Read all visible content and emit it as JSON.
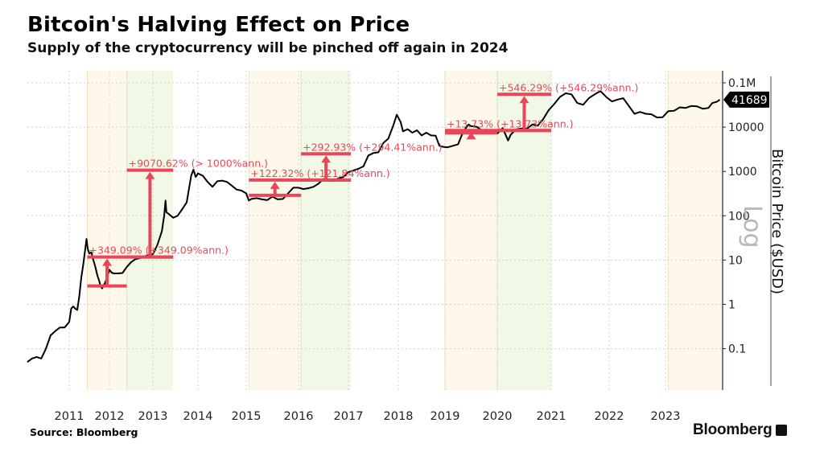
{
  "header": {
    "title": "Bitcoin's Halving Effect on Price",
    "subtitle": "Supply of the cryptocurrency will be pinched off again in 2024"
  },
  "footer": {
    "source": "Source: Bloomberg",
    "brand": "Bloomberg"
  },
  "colors": {
    "line": "#000000",
    "annotation": "#e8475a",
    "pre_halving_band": "#fdf8ea",
    "post_halving_band": "#f1f8e6",
    "grid": "#d0d0d0",
    "last_price_badge": "#000000"
  },
  "chart_data": {
    "type": "line",
    "title": "Bitcoin's Halving Effect on Price",
    "subtitle": "Supply of the cryptocurrency will be pinched off again in 2024",
    "xlabel": "",
    "ylabel": "Bitcoin Price ($USD)",
    "yscale": "log",
    "yscale_label": "Log",
    "ylim": [
      0.02,
      150000
    ],
    "y_ticks": [
      {
        "value": 100000,
        "label": "0.1M"
      },
      {
        "value": 10000,
        "label": "10000"
      },
      {
        "value": 1000,
        "label": "1000"
      },
      {
        "value": 100,
        "label": "100"
      },
      {
        "value": 10,
        "label": "10"
      },
      {
        "value": 1,
        "label": "1"
      },
      {
        "value": 0.1,
        "label": "0.1"
      }
    ],
    "x_ticks": [
      "2011",
      "2012",
      "2013",
      "2014",
      "2015",
      "2016",
      "2017",
      "2018",
      "2019",
      "2020",
      "2021",
      "2022",
      "2023"
    ],
    "xlim": [
      2010.55,
      2024.0
    ],
    "grid": true,
    "last_price": {
      "label": "41689",
      "value": 41689
    },
    "bands": [
      {
        "kind": "pre-halving",
        "start": 2011.45,
        "end": 2012.4
      },
      {
        "kind": "post-halving",
        "start": 2012.4,
        "end": 2013.45
      },
      {
        "kind": "pre-halving",
        "start": 2015.05,
        "end": 2016.05
      },
      {
        "kind": "post-halving",
        "start": 2016.05,
        "end": 2017.05
      },
      {
        "kind": "pre-halving",
        "start": 2019.0,
        "end": 2020.0
      },
      {
        "kind": "post-halving",
        "start": 2020.0,
        "end": 2021.0
      },
      {
        "kind": "pre-halving",
        "start": 2023.05,
        "end": 2024.0
      }
    ],
    "series": [
      {
        "name": "Bitcoin Price",
        "points": [
          [
            2010.55,
            0.05
          ],
          [
            2010.6,
            0.06
          ],
          [
            2010.65,
            0.065
          ],
          [
            2010.7,
            0.06
          ],
          [
            2010.75,
            0.1
          ],
          [
            2010.8,
            0.2
          ],
          [
            2010.85,
            0.25
          ],
          [
            2010.9,
            0.3
          ],
          [
            2010.95,
            0.3
          ],
          [
            2011.0,
            0.4
          ],
          [
            2011.05,
            0.8
          ],
          [
            2011.1,
            0.9
          ],
          [
            2011.15,
            0.8
          ],
          [
            2011.2,
            0.75
          ],
          [
            2011.25,
            1.5
          ],
          [
            2011.3,
            4
          ],
          [
            2011.35,
            8
          ],
          [
            2011.4,
            18
          ],
          [
            2011.43,
            30
          ],
          [
            2011.46,
            18
          ],
          [
            2011.5,
            14
          ],
          [
            2011.55,
            15
          ],
          [
            2011.6,
            10
          ],
          [
            2011.65,
            7
          ],
          [
            2011.7,
            4.5
          ],
          [
            2011.75,
            3.3
          ],
          [
            2011.78,
            2.5
          ],
          [
            2011.82,
            2.3
          ],
          [
            2011.9,
            3.2
          ],
          [
            2012.0,
            6
          ],
          [
            2012.05,
            5.2
          ],
          [
            2012.1,
            5
          ],
          [
            2012.2,
            5
          ],
          [
            2012.3,
            5.1
          ],
          [
            2012.4,
            7
          ],
          [
            2012.5,
            9
          ],
          [
            2012.6,
            10.5
          ],
          [
            2012.7,
            11
          ],
          [
            2012.8,
            12
          ],
          [
            2012.9,
            13
          ],
          [
            2013.0,
            13.5
          ],
          [
            2013.1,
            22
          ],
          [
            2013.2,
            45
          ],
          [
            2013.25,
            100
          ],
          [
            2013.28,
            220
          ],
          [
            2013.3,
            120
          ],
          [
            2013.35,
            110
          ],
          [
            2013.45,
            90
          ],
          [
            2013.5,
            95
          ],
          [
            2013.55,
            100
          ],
          [
            2013.65,
            140
          ],
          [
            2013.75,
            200
          ],
          [
            2013.85,
            800
          ],
          [
            2013.9,
            1100
          ],
          [
            2013.95,
            750
          ],
          [
            2014.0,
            900
          ],
          [
            2014.1,
            800
          ],
          [
            2014.2,
            580
          ],
          [
            2014.3,
            450
          ],
          [
            2014.4,
            600
          ],
          [
            2014.5,
            620
          ],
          [
            2014.6,
            580
          ],
          [
            2014.7,
            480
          ],
          [
            2014.8,
            390
          ],
          [
            2014.9,
            370
          ],
          [
            2015.0,
            320
          ],
          [
            2015.05,
            220
          ],
          [
            2015.1,
            240
          ],
          [
            2015.2,
            250
          ],
          [
            2015.3,
            235
          ],
          [
            2015.4,
            225
          ],
          [
            2015.5,
            270
          ],
          [
            2015.6,
            235
          ],
          [
            2015.7,
            240
          ],
          [
            2015.8,
            320
          ],
          [
            2015.9,
            430
          ],
          [
            2016.0,
            430
          ],
          [
            2016.1,
            400
          ],
          [
            2016.2,
            420
          ],
          [
            2016.3,
            450
          ],
          [
            2016.4,
            530
          ],
          [
            2016.5,
            680
          ],
          [
            2016.6,
            620
          ],
          [
            2016.7,
            610
          ],
          [
            2016.8,
            700
          ],
          [
            2016.9,
            750
          ],
          [
            2017.0,
            970
          ],
          [
            2017.1,
            1050
          ],
          [
            2017.2,
            1150
          ],
          [
            2017.3,
            1300
          ],
          [
            2017.4,
            2300
          ],
          [
            2017.5,
            2600
          ],
          [
            2017.6,
            2700
          ],
          [
            2017.7,
            4400
          ],
          [
            2017.8,
            5500
          ],
          [
            2017.9,
            11000
          ],
          [
            2017.97,
            19000
          ],
          [
            2018.05,
            13000
          ],
          [
            2018.1,
            8000
          ],
          [
            2018.2,
            9000
          ],
          [
            2018.3,
            7500
          ],
          [
            2018.4,
            8500
          ],
          [
            2018.5,
            6500
          ],
          [
            2018.6,
            7500
          ],
          [
            2018.7,
            6500
          ],
          [
            2018.8,
            6400
          ],
          [
            2018.88,
            3800
          ],
          [
            2018.95,
            3600
          ],
          [
            2019.05,
            3500
          ],
          [
            2019.15,
            3800
          ],
          [
            2019.25,
            4100
          ],
          [
            2019.35,
            8000
          ],
          [
            2019.45,
            11500
          ],
          [
            2019.5,
            10500
          ],
          [
            2019.6,
            10200
          ],
          [
            2019.7,
            8500
          ],
          [
            2019.8,
            8800
          ],
          [
            2019.9,
            7200
          ],
          [
            2020.0,
            7200
          ],
          [
            2020.1,
            9500
          ],
          [
            2020.2,
            5000
          ],
          [
            2020.25,
            6800
          ],
          [
            2020.35,
            8900
          ],
          [
            2020.45,
            9300
          ],
          [
            2020.55,
            9200
          ],
          [
            2020.65,
            11500
          ],
          [
            2020.75,
            10800
          ],
          [
            2020.85,
            15000
          ],
          [
            2020.95,
            24000
          ],
          [
            2021.05,
            33000
          ],
          [
            2021.15,
            48000
          ],
          [
            2021.25,
            58000
          ],
          [
            2021.35,
            55000
          ],
          [
            2021.45,
            35000
          ],
          [
            2021.55,
            32000
          ],
          [
            2021.65,
            45000
          ],
          [
            2021.75,
            55000
          ],
          [
            2021.85,
            65000
          ],
          [
            2021.95,
            48000
          ],
          [
            2022.05,
            38000
          ],
          [
            2022.15,
            42000
          ],
          [
            2022.25,
            45000
          ],
          [
            2022.35,
            30000
          ],
          [
            2022.45,
            20000
          ],
          [
            2022.55,
            22000
          ],
          [
            2022.65,
            20000
          ],
          [
            2022.75,
            19500
          ],
          [
            2022.85,
            16500
          ],
          [
            2022.95,
            16800
          ],
          [
            2023.05,
            23000
          ],
          [
            2023.15,
            23500
          ],
          [
            2023.25,
            28000
          ],
          [
            2023.35,
            27000
          ],
          [
            2023.45,
            30000
          ],
          [
            2023.55,
            29500
          ],
          [
            2023.65,
            26000
          ],
          [
            2023.75,
            27000
          ],
          [
            2023.82,
            35000
          ],
          [
            2023.9,
            37500
          ],
          [
            2023.95,
            41689
          ]
        ]
      }
    ],
    "annotations": [
      {
        "label": "+349.09% (+349.09%ann.)",
        "from_value": 2.6,
        "to_value": 11.7,
        "x_start": 2011.45,
        "x_end": 2012.4,
        "x_end_top": 2013.45
      },
      {
        "label": "+9070.62% (> 1000%ann.)",
        "from_value": 11.7,
        "to_value": 1070,
        "x_start": 2012.4,
        "x_end": 2013.45
      },
      {
        "label": "+122.32% (+121.84%ann.)",
        "from_value": 290,
        "to_value": 640,
        "x_start": 2015.05,
        "x_end": 2016.05,
        "x_end_top": 2017.05
      },
      {
        "label": "+292.93% (+294.41%ann.)",
        "from_value": 640,
        "to_value": 2500,
        "x_start": 2016.05,
        "x_end": 2017.05
      },
      {
        "label": "+13.73% (+13.73%ann.)",
        "from_value": 7400,
        "to_value": 8400,
        "x_start": 2019.0,
        "x_end": 2020.0,
        "x_end_top": 2021.0
      },
      {
        "label": "+546.29% (+546.29%ann.)",
        "from_value": 8400,
        "to_value": 55000,
        "x_start": 2020.0,
        "x_end": 2021.0
      }
    ]
  }
}
